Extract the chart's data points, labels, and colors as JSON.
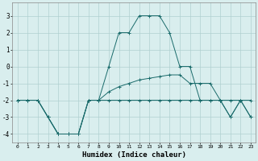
{
  "line1_x": [
    0,
    1,
    2,
    3,
    4,
    5,
    6,
    7,
    8,
    9,
    10,
    11,
    12,
    13,
    14,
    15,
    16,
    17,
    18,
    19,
    20,
    21,
    22,
    23
  ],
  "line1_y": [
    -2,
    -2,
    -2,
    -3,
    -4,
    -4,
    -4,
    -2,
    -2,
    -2,
    -2,
    -2,
    -2,
    -2,
    -2,
    -2,
    -2,
    -2,
    -2,
    -2,
    -2,
    -2,
    -2,
    -2
  ],
  "line2_x": [
    0,
    1,
    2,
    3,
    4,
    5,
    6,
    7,
    8,
    9,
    10,
    11,
    12,
    13,
    14,
    15,
    16,
    17,
    18,
    19,
    20,
    21,
    22,
    23
  ],
  "line2_y": [
    -2,
    -2,
    -2,
    -3,
    -4,
    -4,
    -4,
    -2,
    -2,
    -1.5,
    -1.2,
    -1.0,
    -0.8,
    -0.7,
    -0.6,
    -0.5,
    -0.5,
    -1.0,
    -1.0,
    -1.0,
    -2,
    -3,
    -2,
    -3
  ],
  "line3_x": [
    0,
    1,
    2,
    3,
    4,
    5,
    6,
    7,
    8,
    9,
    10,
    11,
    12,
    13,
    14,
    15,
    16,
    17,
    18,
    19,
    20,
    21,
    22,
    23
  ],
  "line3_y": [
    -2,
    -2,
    -2,
    -3,
    -4,
    -4,
    -4,
    -2,
    -2,
    0,
    2,
    2,
    3,
    3,
    3,
    2,
    0,
    0,
    -2,
    -2,
    -2,
    -3,
    -2,
    -3
  ],
  "xlim": [
    -0.5,
    23.5
  ],
  "ylim": [
    -4.5,
    3.8
  ],
  "yticks": [
    -4,
    -3,
    -2,
    -1,
    0,
    1,
    2,
    3
  ],
  "xticks": [
    0,
    1,
    2,
    3,
    4,
    5,
    6,
    7,
    8,
    9,
    10,
    11,
    12,
    13,
    14,
    15,
    16,
    17,
    18,
    19,
    20,
    21,
    22,
    23
  ],
  "xtick_labels": [
    "0",
    "1",
    "2",
    "3",
    "4",
    "5",
    "6",
    "7",
    "8",
    "9",
    "10",
    "11",
    "12",
    "13",
    "14",
    "15",
    "16",
    "17",
    "18",
    "19",
    "20",
    "21",
    "22",
    "23"
  ],
  "ytick_labels": [
    "-4",
    "-3",
    "-2",
    "-1",
    "0",
    "1",
    "2",
    "3"
  ],
  "xlabel": "Humidex (Indice chaleur)",
  "line_color": "#1a6b6b",
  "bg_color": "#d9eeee",
  "grid_color": "#b0d0d0",
  "marker": "+"
}
